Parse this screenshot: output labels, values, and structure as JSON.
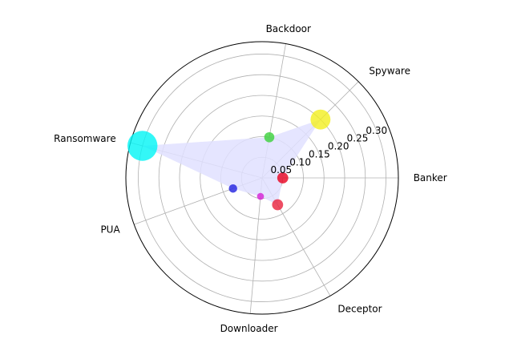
{
  "chart_data": {
    "type": "scatter",
    "projection": "polar",
    "categories": [
      "Banker",
      "Spyware",
      "Backdoor",
      "Ransomware",
      "PUA",
      "Downloader",
      "Deceptor"
    ],
    "theta_deg": [
      0,
      45,
      80,
      165,
      200,
      265,
      300
    ],
    "r_values": [
      0.05,
      0.2,
      0.1,
      0.3,
      0.075,
      0.045,
      0.075
    ],
    "point_sizes": [
      190,
      620,
      160,
      1400,
      110,
      75,
      190
    ],
    "point_colors": [
      "#e8001e",
      "#f2ef1f",
      "#3ad13a",
      "#00f5f5",
      "#1f1fe0",
      "#d41fd4",
      "#e8203c"
    ],
    "area_fill": "#e0e0ff",
    "r_ticks": [
      "0.05",
      "0.10",
      "0.15",
      "0.20",
      "0.25",
      "0.30"
    ],
    "rlim": [
      0,
      0.33
    ],
    "grid": true,
    "title": "",
    "legend": "none"
  }
}
